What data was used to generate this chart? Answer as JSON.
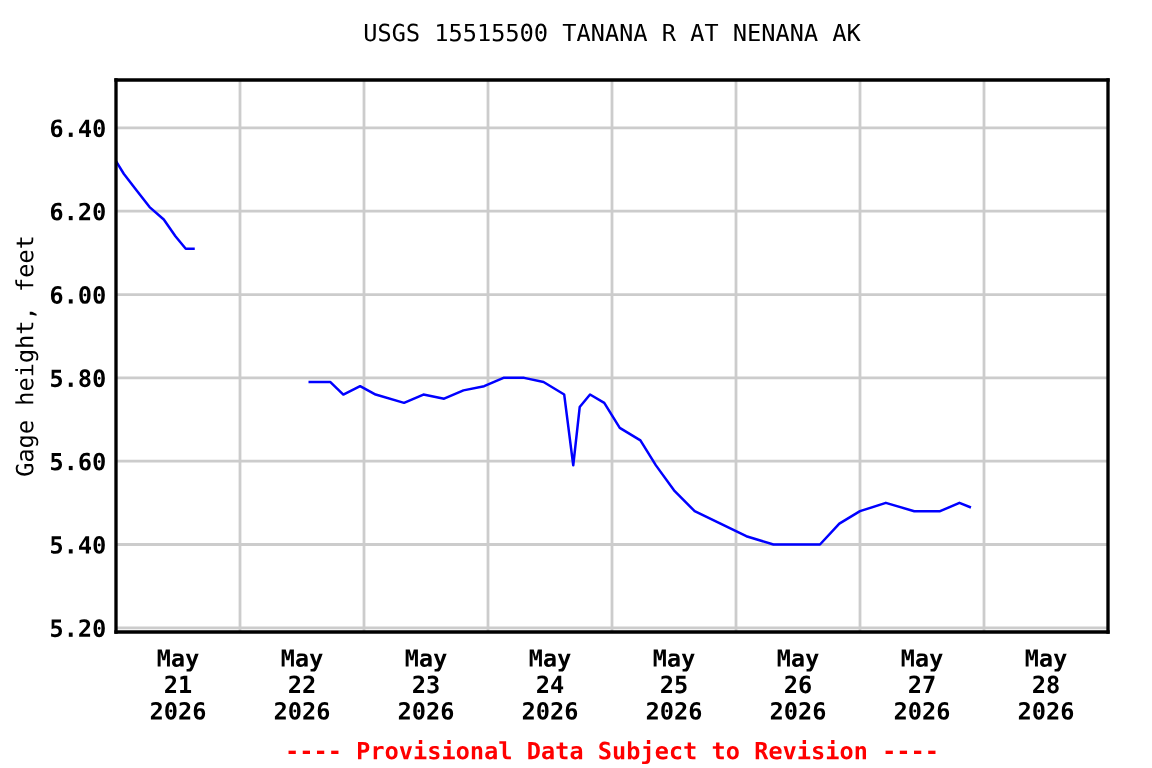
{
  "chart_data": {
    "type": "line",
    "title": "USGS 15515500 TANANA R AT NENANA AK",
    "ylabel": "Gage height, feet",
    "annotations": [
      "---- Provisional Data Subject to Revision ----"
    ],
    "series": [
      {
        "color": "#0000ff",
        "x": [
          "2026-05-21T00:00",
          "2026-05-21T01:30",
          "2026-05-21T04:00",
          "2026-05-21T06:30",
          "2026-05-21T09:15",
          "2026-05-21T11:30",
          "2026-05-21T13:30",
          "2026-05-21T15:00",
          "2026-05-22T00:00",
          "2026-05-22T13:30",
          "2026-05-22T17:30",
          "2026-05-22T20:00",
          "2026-05-22T23:15",
          "2026-05-23T02:15",
          "2026-05-23T07:45",
          "2026-05-23T11:30",
          "2026-05-23T15:30",
          "2026-05-23T19:15",
          "2026-05-23T23:15",
          "2026-05-24T03:00",
          "2026-05-24T07:00",
          "2026-05-24T10:45",
          "2026-05-24T14:45",
          "2026-05-24T16:30",
          "2026-05-24T17:45",
          "2026-05-24T19:45",
          "2026-05-24T22:30",
          "2026-05-25T01:30",
          "2026-05-25T05:30",
          "2026-05-25T08:30",
          "2026-05-25T12:00",
          "2026-05-25T16:00",
          "2026-05-25T21:00",
          "2026-05-26T02:00",
          "2026-05-26T07:15",
          "2026-05-26T12:30",
          "2026-05-26T16:15",
          "2026-05-26T20:00",
          "2026-05-27T00:00",
          "2026-05-27T05:00",
          "2026-05-27T10:30",
          "2026-05-27T15:30",
          "2026-05-27T19:15",
          "2026-05-27T21:15"
        ],
        "values": [
          6.32,
          6.29,
          6.25,
          6.21,
          6.18,
          6.14,
          6.11,
          6.11,
          null,
          5.79,
          5.79,
          5.76,
          5.78,
          5.76,
          5.74,
          5.76,
          5.75,
          5.77,
          5.78,
          5.8,
          5.8,
          5.79,
          5.76,
          5.59,
          5.73,
          5.76,
          5.74,
          5.68,
          5.65,
          5.59,
          5.53,
          5.48,
          5.45,
          5.42,
          5.4,
          5.4,
          5.4,
          5.45,
          5.48,
          5.5,
          5.48,
          5.48,
          5.5,
          5.49
        ]
      }
    ],
    "xlim": [
      "2026-05-21",
      "2026-05-29"
    ],
    "xticks": [
      {
        "value": "2026-05-22",
        "label": null
      },
      {
        "value": "2026-05-23",
        "label": null
      },
      {
        "value": "2026-05-24",
        "label": null
      },
      {
        "value": "2026-05-25",
        "label": null
      },
      {
        "value": "2026-05-26",
        "label": null
      },
      {
        "value": "2026-05-27",
        "label": null
      },
      {
        "value": "2026-05-28",
        "label": null
      },
      {
        "value": "2026-05-21T12:00",
        "label": "May\n21\n2026"
      },
      {
        "value": "2026-05-22T12:00",
        "label": "May\n22\n2026"
      },
      {
        "value": "2026-05-23T12:00",
        "label": "May\n23\n2026"
      },
      {
        "value": "2026-05-24T12:00",
        "label": "May\n24\n2026"
      },
      {
        "value": "2026-05-25T12:00",
        "label": "May\n25\n2026"
      },
      {
        "value": "2026-05-26T12:00",
        "label": "May\n26\n2026"
      },
      {
        "value": "2026-05-27T12:00",
        "label": "May\n27\n2026"
      },
      {
        "value": "2026-05-28T12:00",
        "label": "May\n28\n2026"
      }
    ],
    "ylim": [
      5.19,
      6.515
    ],
    "yticks": [
      {
        "value": 5.2,
        "label": "5.20"
      },
      {
        "value": 5.4,
        "label": "5.40"
      },
      {
        "value": 5.6,
        "label": "5.60"
      },
      {
        "value": 5.8,
        "label": "5.80"
      },
      {
        "value": 6.0,
        "label": "6.00"
      },
      {
        "value": 6.2,
        "label": "6.20"
      },
      {
        "value": 6.4,
        "label": "6.40"
      }
    ],
    "grid": true
  }
}
